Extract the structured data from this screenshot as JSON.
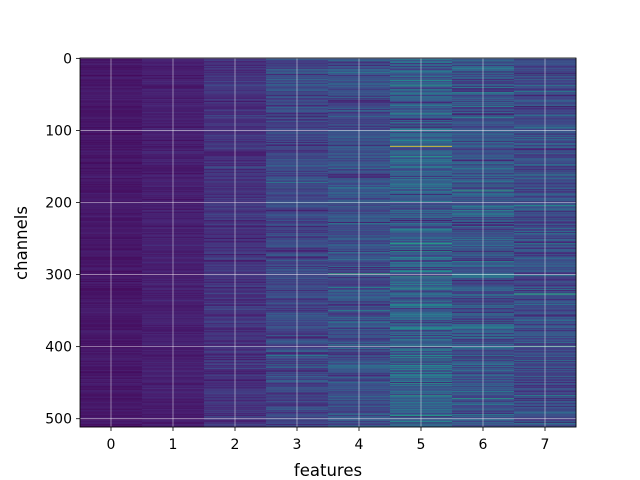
{
  "chart_data": {
    "type": "heatmap",
    "title": "",
    "xlabel": "features",
    "ylabel": "channels",
    "x_categories": [
      "0",
      "1",
      "2",
      "3",
      "4",
      "5",
      "6",
      "7"
    ],
    "y_range": [
      0,
      511
    ],
    "y_ticks": [
      0,
      100,
      200,
      300,
      400,
      500
    ],
    "y_inverted": true,
    "n_channels": 512,
    "colormap": "viridis",
    "grid": true,
    "column_intensity": [
      0.08,
      0.11,
      0.18,
      0.26,
      0.3,
      0.36,
      0.32,
      0.28
    ],
    "column_spread": [
      0.04,
      0.05,
      0.09,
      0.14,
      0.17,
      0.22,
      0.19,
      0.17
    ],
    "highlights": [
      {
        "feature": 3,
        "channel": 172,
        "value": 0.55
      },
      {
        "feature": 3,
        "channel": 180,
        "value": 0.5
      },
      {
        "feature": 3,
        "channel": 425,
        "value": 0.5
      },
      {
        "feature": 4,
        "channel": 299,
        "value": 0.75
      },
      {
        "feature": 4,
        "channel": 398,
        "value": 0.6
      },
      {
        "feature": 5,
        "channel": 2,
        "value": 0.55
      },
      {
        "feature": 5,
        "channel": 122,
        "value": 1.0
      },
      {
        "feature": 5,
        "channel": 268,
        "value": 0.65
      },
      {
        "feature": 5,
        "channel": 495,
        "value": 0.6
      },
      {
        "feature": 6,
        "channel": 183,
        "value": 0.7
      },
      {
        "feature": 6,
        "channel": 270,
        "value": 0.6
      },
      {
        "feature": 6,
        "channel": 300,
        "value": 0.55
      },
      {
        "feature": 7,
        "channel": 46,
        "value": 0.55
      },
      {
        "feature": 7,
        "channel": 162,
        "value": 0.6
      },
      {
        "feature": 7,
        "channel": 327,
        "value": 0.75
      },
      {
        "feature": 7,
        "channel": 400,
        "value": 0.7
      },
      {
        "feature": 7,
        "channel": 468,
        "value": 0.6
      }
    ]
  }
}
